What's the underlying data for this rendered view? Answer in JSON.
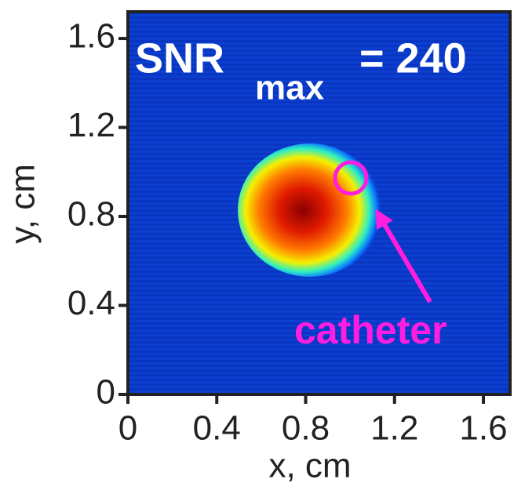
{
  "chart_data": {
    "type": "heatmap",
    "annotations": [
      "SNR",
      "max",
      "= 240",
      "catheter"
    ],
    "x_label": "x, cm",
    "y_label": "y, cm",
    "xlim": [
      0,
      1.72
    ],
    "ylim": [
      0,
      1.72
    ],
    "xticks": [
      0,
      0.4,
      0.8,
      1.2,
      1.6
    ],
    "yticks": [
      0,
      0.4,
      0.8,
      1.2,
      1.6
    ],
    "colormap": "jet"
  }
}
